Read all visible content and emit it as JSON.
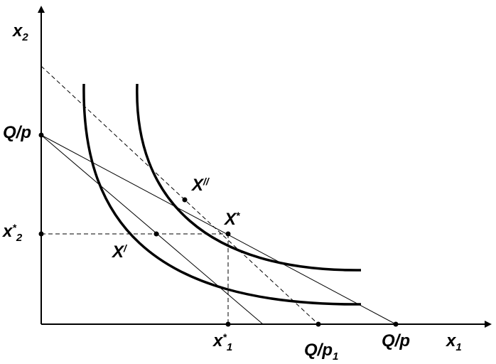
{
  "diagram": {
    "axis_x": {
      "text": "x",
      "sub": "1"
    },
    "axis_y": {
      "text": "x",
      "sub": "2"
    },
    "y_intercept_label": "Q/p",
    "x_intercept_label": "Q/p",
    "shifted_intercept_label": {
      "text": "Q/p",
      "sub": "1"
    },
    "optimum_x": {
      "text": "x",
      "sup": "*",
      "sub": "1"
    },
    "optimum_y": {
      "text": "x",
      "sup": "*",
      "sub": "2"
    },
    "point_star": {
      "text": "X",
      "sup": "*"
    },
    "point_prime": {
      "text": "X",
      "sup": "/"
    },
    "point_double_prime": {
      "text": "X",
      "sup": "//"
    },
    "colors": {
      "ink": "#000000",
      "background": "#ffffff"
    }
  }
}
